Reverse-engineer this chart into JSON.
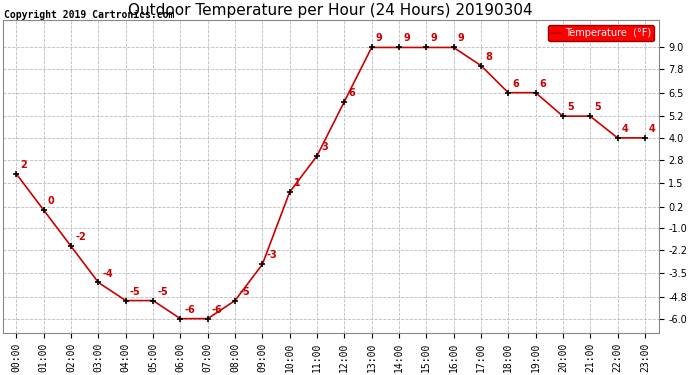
{
  "title": "Outdoor Temperature per Hour (24 Hours) 20190304",
  "copyright": "Copyright 2019 Cartronics.com",
  "legend_label": "Temperature  (°F)",
  "hours": [
    0,
    1,
    2,
    3,
    4,
    5,
    6,
    7,
    8,
    9,
    10,
    11,
    12,
    13,
    14,
    15,
    16,
    17,
    18,
    19,
    20,
    21,
    22,
    23
  ],
  "hour_labels": [
    "00:00",
    "01:00",
    "02:00",
    "03:00",
    "04:00",
    "05:00",
    "06:00",
    "07:00",
    "08:00",
    "09:00",
    "10:00",
    "11:00",
    "12:00",
    "13:00",
    "14:00",
    "15:00",
    "16:00",
    "17:00",
    "18:00",
    "19:00",
    "20:00",
    "21:00",
    "22:00",
    "23:00"
  ],
  "temperatures": [
    2,
    0,
    -2,
    -4,
    -5,
    -5,
    -6,
    -6,
    -5,
    -3,
    1,
    3,
    6,
    9,
    9,
    9,
    9,
    8,
    6.5,
    6.5,
    5.2,
    5.2,
    4,
    4
  ],
  "yticks": [
    9.0,
    7.8,
    6.5,
    5.2,
    4.0,
    2.8,
    1.5,
    0.2,
    -1.0,
    -2.2,
    -3.5,
    -4.8,
    -6.0
  ],
  "ylim": [
    -6.8,
    10.5
  ],
  "xlim": [
    -0.5,
    23.5
  ],
  "line_color": "#cc0000",
  "marker_color": "#000000",
  "label_color": "#cc0000",
  "bg_color": "#ffffff",
  "grid_color": "#bbbbbb",
  "title_fontsize": 11,
  "copyright_fontsize": 7,
  "tick_fontsize": 7,
  "data_label_fontsize": 7
}
